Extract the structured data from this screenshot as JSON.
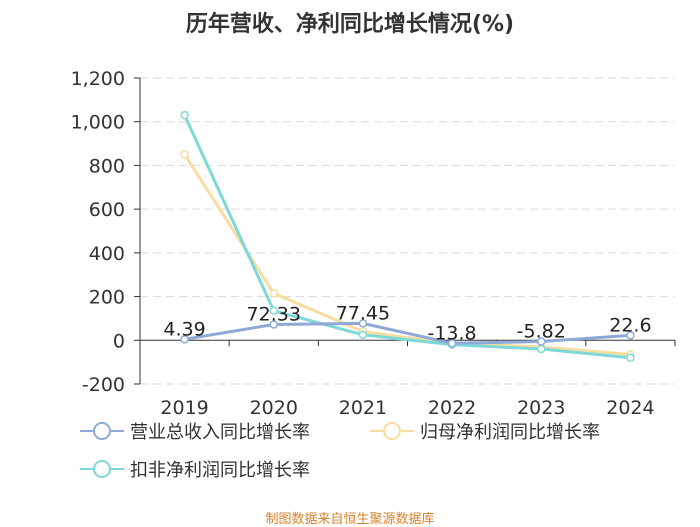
{
  "chart_data": {
    "type": "line",
    "title": "历年营收、净利同比增长情况(%)",
    "categories": [
      "2019",
      "2020",
      "2021",
      "2022",
      "2023",
      "2024"
    ],
    "ylim": [
      -200,
      1200
    ],
    "yticks": [
      -200,
      0,
      200,
      400,
      600,
      800,
      1000,
      1200
    ],
    "ytick_labels": [
      "-200",
      "0",
      "200",
      "400",
      "600",
      "800",
      "1,000",
      "1,200"
    ],
    "grid": true,
    "legend_position": "bottom",
    "series": [
      {
        "name": "营业总收入同比增长率",
        "color": "#8ea9d8",
        "values": [
          4.39,
          72.33,
          77.45,
          -13.8,
          -5.82,
          22.6
        ],
        "labels": [
          "4.39",
          "72.33",
          "77.45",
          "-13.8",
          "-5.82",
          "22.6"
        ]
      },
      {
        "name": "归母净利润同比增长率",
        "color": "#f9dca0",
        "values": [
          850,
          215,
          40,
          -15,
          -30,
          -65
        ]
      },
      {
        "name": "扣非净利润同比增长率",
        "color": "#7fd8d8",
        "values": [
          1030,
          135,
          25,
          -20,
          -40,
          -80
        ]
      }
    ]
  },
  "source": "制图数据来自恒生聚源数据库"
}
